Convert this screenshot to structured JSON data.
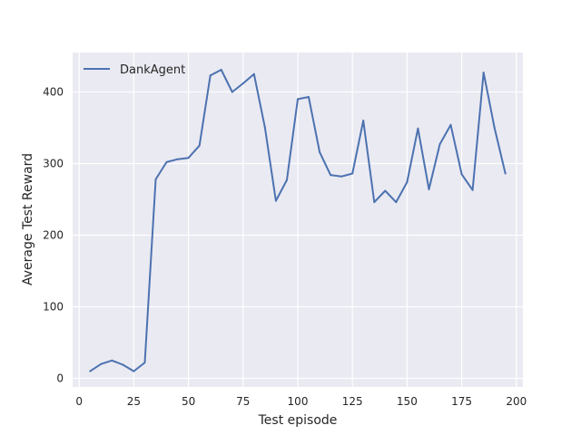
{
  "chart_data": {
    "type": "line",
    "xlabel": "Test episode",
    "ylabel": "Average Test Reward",
    "xlim": [
      -3,
      203
    ],
    "ylim": [
      -12,
      455
    ],
    "xticks": [
      0,
      25,
      50,
      75,
      100,
      125,
      150,
      175,
      200
    ],
    "yticks": [
      0,
      100,
      200,
      300,
      400
    ],
    "grid": true,
    "legend_position": "top-left",
    "background": "#EAEAF2",
    "series": [
      {
        "name": "DankAgent",
        "color": "#4C72B0",
        "x": [
          5,
          10,
          15,
          20,
          25,
          30,
          35,
          40,
          45,
          50,
          55,
          60,
          65,
          70,
          75,
          80,
          85,
          90,
          95,
          100,
          105,
          110,
          115,
          120,
          125,
          130,
          135,
          140,
          145,
          150,
          155,
          160,
          165,
          170,
          175,
          180,
          185,
          190,
          195
        ],
        "y": [
          10,
          20,
          25,
          19,
          10,
          22,
          278,
          302,
          306,
          308,
          325,
          423,
          431,
          400,
          412,
          425,
          350,
          248,
          277,
          390,
          393,
          316,
          284,
          282,
          286,
          360,
          246,
          262,
          246,
          274,
          349,
          264,
          327,
          354,
          285,
          263,
          427,
          350,
          286
        ]
      }
    ]
  }
}
